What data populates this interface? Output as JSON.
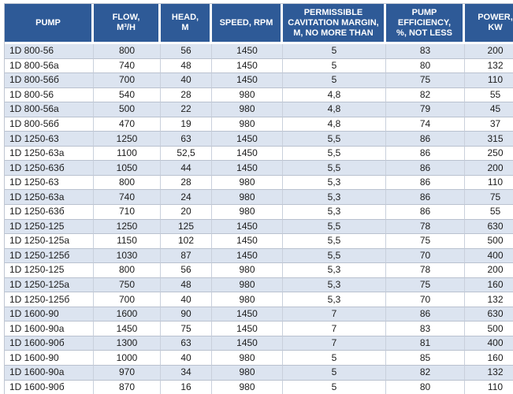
{
  "colors": {
    "header_bg": "#2E5A97",
    "header_text": "#FFFFFF",
    "alt_row_bg": "#DCE4F0",
    "row_bg": "#FFFFFF",
    "vertical_grid": "#C9D0DC",
    "horizontal_grid": "#B9C1CF",
    "outer_border": "#BFC6D2",
    "body_text": "#1C1C1C"
  },
  "chart_data": {
    "type": "table",
    "title": "",
    "columns": [
      "PUMP",
      "FLOW,\nM³/H",
      "HEAD,\nM",
      "SPEED, RPM",
      "PERMISSIBLE\nCAVITATION MARGIN,\nM, NO MORE THAN",
      "PUMP\nEFFICIENCY,\n%, NOT LESS",
      "POWER,\nKW"
    ],
    "rows": [
      [
        "1D 800-56",
        "800",
        "56",
        "1450",
        "5",
        "83",
        "200"
      ],
      [
        "1D 800-56a",
        "740",
        "48",
        "1450",
        "5",
        "80",
        "132"
      ],
      [
        "1D 800-56б",
        "700",
        "40",
        "1450",
        "5",
        "75",
        "110"
      ],
      [
        "1D 800-56",
        "540",
        "28",
        "980",
        "4,8",
        "82",
        "55"
      ],
      [
        "1D 800-56a",
        "500",
        "22",
        "980",
        "4,8",
        "79",
        "45"
      ],
      [
        "1D 800-56б",
        "470",
        "19",
        "980",
        "4,8",
        "74",
        "37"
      ],
      [
        "1D 1250-63",
        "1250",
        "63",
        "1450",
        "5,5",
        "86",
        "315"
      ],
      [
        "1D 1250-63a",
        "1100",
        "52,5",
        "1450",
        "5,5",
        "86",
        "250"
      ],
      [
        "1D 1250-63б",
        "1050",
        "44",
        "1450",
        "5,5",
        "86",
        "200"
      ],
      [
        "1D 1250-63",
        "800",
        "28",
        "980",
        "5,3",
        "86",
        "110"
      ],
      [
        "1D 1250-63a",
        "740",
        "24",
        "980",
        "5,3",
        "86",
        "75"
      ],
      [
        "1D 1250-63б",
        "710",
        "20",
        "980",
        "5,3",
        "86",
        "55"
      ],
      [
        "1D 1250-125",
        "1250",
        "125",
        "1450",
        "5,5",
        "78",
        "630"
      ],
      [
        "1D 1250-125a",
        "1150",
        "102",
        "1450",
        "5,5",
        "75",
        "500"
      ],
      [
        "1D 1250-125б",
        "1030",
        "87",
        "1450",
        "5,5",
        "70",
        "400"
      ],
      [
        "1D 1250-125",
        "800",
        "56",
        "980",
        "5,3",
        "78",
        "200"
      ],
      [
        "1D 1250-125a",
        "750",
        "48",
        "980",
        "5,3",
        "75",
        "160"
      ],
      [
        "1D 1250-125б",
        "700",
        "40",
        "980",
        "5,3",
        "70",
        "132"
      ],
      [
        "1D 1600-90",
        "1600",
        "90",
        "1450",
        "7",
        "86",
        "630"
      ],
      [
        "1D 1600-90a",
        "1450",
        "75",
        "1450",
        "7",
        "83",
        "500"
      ],
      [
        "1D 1600-90б",
        "1300",
        "63",
        "1450",
        "7",
        "81",
        "400"
      ],
      [
        "1D 1600-90",
        "1000",
        "40",
        "980",
        "5",
        "85",
        "160"
      ],
      [
        "1D 1600-90a",
        "970",
        "34",
        "980",
        "5",
        "82",
        "132"
      ],
      [
        "1D 1600-90б",
        "870",
        "16",
        "980",
        "5",
        "80",
        "110"
      ]
    ],
    "layout": {
      "grid": true,
      "header_position": "top",
      "zebra_striping": "odd-rows-light-blue"
    }
  }
}
